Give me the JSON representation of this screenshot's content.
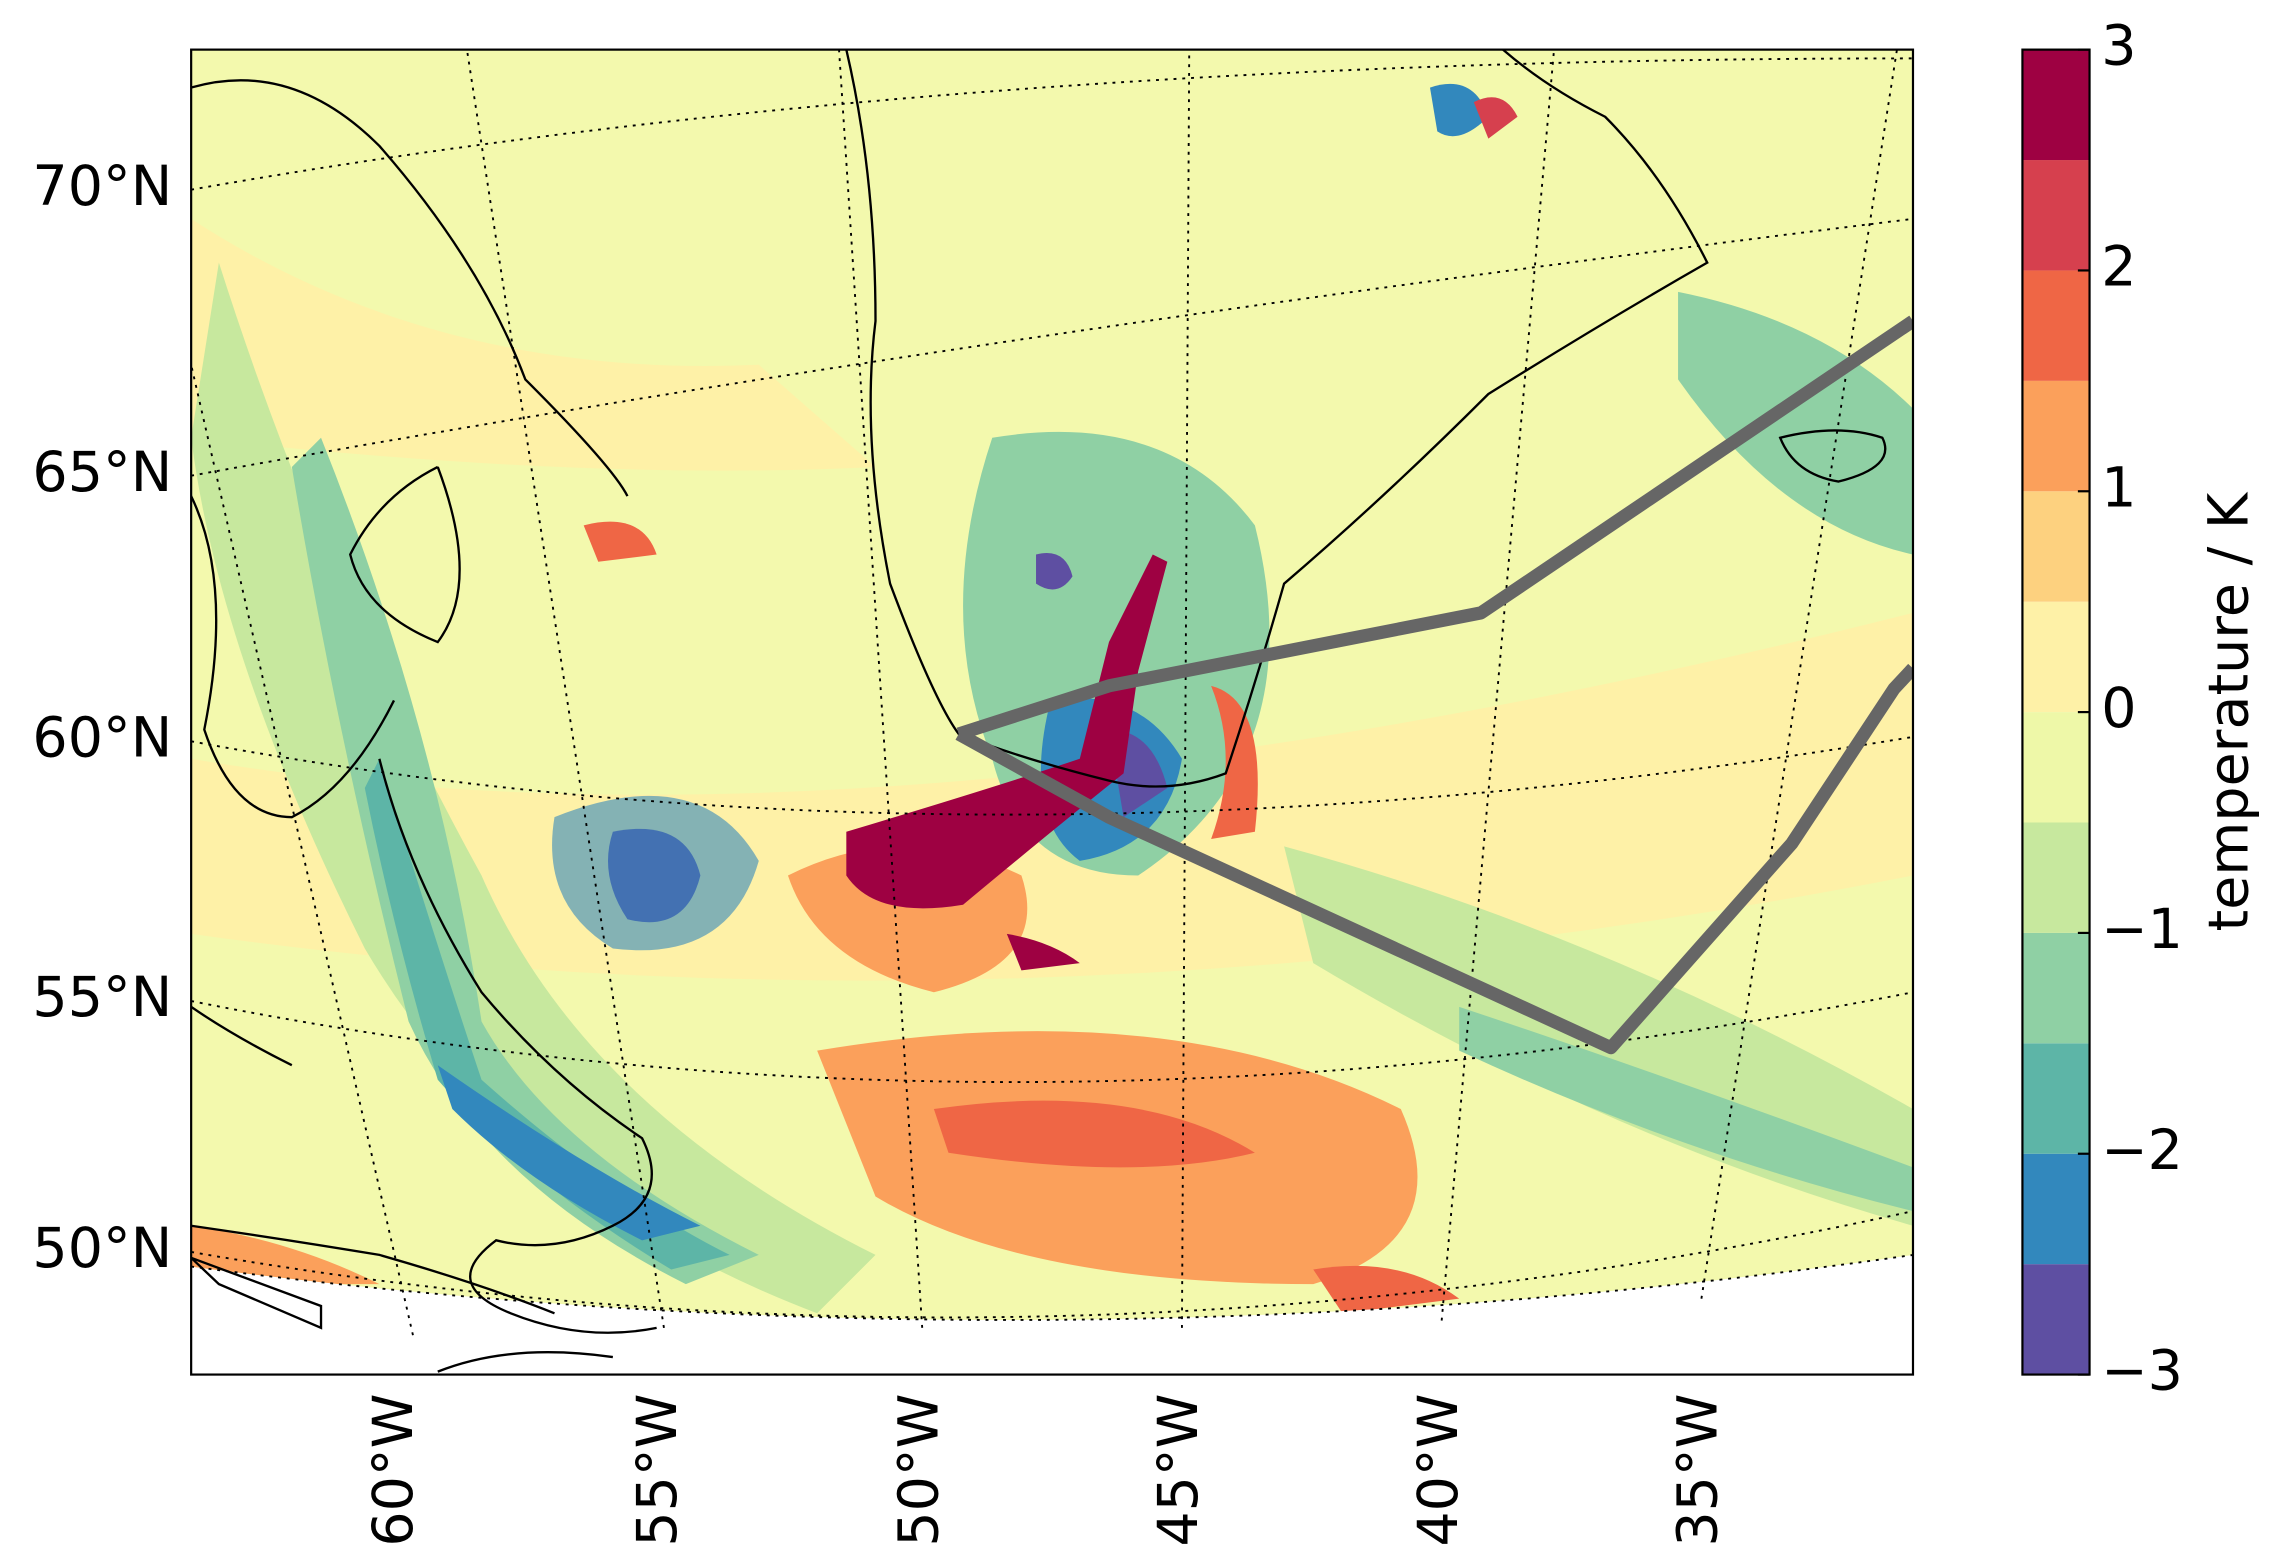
{
  "map": {
    "lat_labels": [
      "70°N",
      "65°N",
      "60°N",
      "55°N",
      "50°N"
    ],
    "lon_labels": [
      "60°W",
      "55°W",
      "50°W",
      "45°W",
      "40°W",
      "35°W"
    ],
    "colorbar": {
      "label": "temperature / K",
      "levels": [
        -3,
        -2.5,
        -2,
        -1.5,
        -1,
        -0.5,
        0,
        0.5,
        1,
        1.5,
        2,
        2.5,
        3
      ],
      "colors": [
        "#5e4fa2",
        "#3288bd",
        "#5db5a7",
        "#8fd0a4",
        "#c7e89e",
        "#eef8a8",
        "#fef1a7",
        "#fdd17f",
        "#fba05b",
        "#ef6645",
        "#d6404e",
        "#9e0142"
      ],
      "lim": [
        -3,
        3
      ],
      "ticks": [
        3,
        2,
        1,
        0,
        {
          "value": -1,
          "label": "−1"
        },
        {
          "value": -2,
          "label": "−2"
        },
        {
          "value": -3,
          "label": "−3"
        }
      ]
    }
  }
}
